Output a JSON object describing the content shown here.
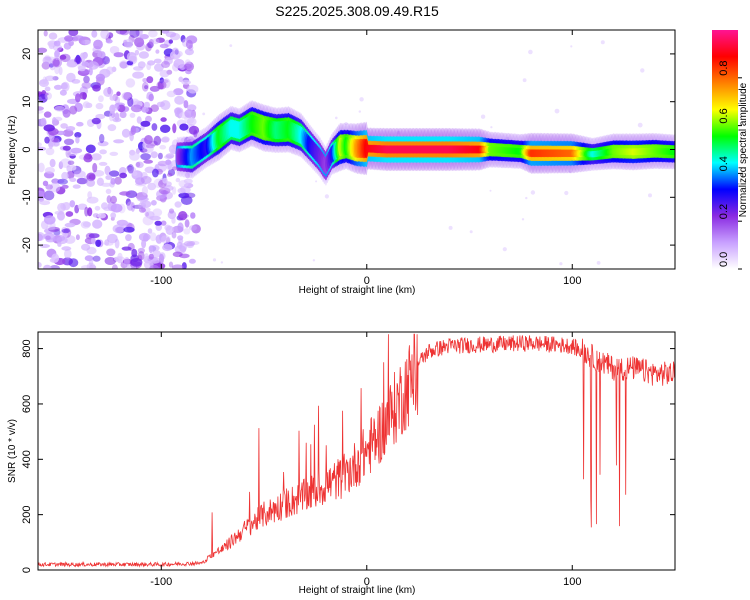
{
  "title": "S225.2025.308.09.49.R15",
  "chart_data": [
    {
      "type": "heatmap",
      "xlabel": "Height of straight line (km)",
      "ylabel": "Frequency (Hz)",
      "xlim": [
        -160,
        150
      ],
      "ylim": [
        -25,
        25
      ],
      "xticks": [
        -100,
        0,
        100
      ],
      "yticks": [
        -20,
        -10,
        0,
        10,
        20
      ],
      "noise_region_x": [
        -160,
        -83
      ],
      "ridge": {
        "x": [
          -92,
          -85,
          -78,
          -72,
          -66,
          -62,
          -56,
          -50,
          -44,
          -38,
          -32,
          -27,
          -23,
          -20,
          -17,
          -13,
          -10,
          -5,
          0,
          10,
          20,
          40,
          55,
          60,
          75,
          80,
          100,
          110,
          120,
          130,
          140,
          150
        ],
        "freq": [
          -1.5,
          -1.6,
          0.5,
          2.5,
          4.5,
          4.0,
          5.5,
          4.5,
          4.0,
          4.2,
          3.0,
          0.5,
          -1.5,
          -3.5,
          -1.0,
          0.5,
          0.7,
          0.2,
          0.2,
          0.0,
          0.0,
          0.0,
          0.0,
          0.0,
          -0.4,
          -0.8,
          -0.8,
          -1.0,
          -0.4,
          -0.5,
          -0.3,
          -0.5
        ],
        "amplitude": [
          0.2,
          0.4,
          0.3,
          0.55,
          0.45,
          0.45,
          0.55,
          0.6,
          0.5,
          0.55,
          0.45,
          0.3,
          0.25,
          0.2,
          0.3,
          0.65,
          0.55,
          0.75,
          0.9,
          0.95,
          0.95,
          0.95,
          0.9,
          0.6,
          0.55,
          0.85,
          0.8,
          0.45,
          0.6,
          0.65,
          0.6,
          0.55
        ]
      },
      "colorbar": {
        "label": "Normalized spectral amplitude",
        "range": [
          0,
          1
        ],
        "ticks": [
          "0.0",
          "0.2",
          "0.4",
          "0.6",
          "0.8"
        ],
        "colors": [
          "#ffffff",
          "#c8a0ff",
          "#8a2be2",
          "#0000ff",
          "#00ffff",
          "#00ff00",
          "#ffff00",
          "#ff8000",
          "#ff0000",
          "#ff1493"
        ]
      }
    },
    {
      "type": "line",
      "xlabel": "Height of straight line (km)",
      "ylabel": "SNR (10 * v/v)",
      "xlim": [
        -160,
        150
      ],
      "ylim": [
        0,
        860
      ],
      "xticks": [
        -100,
        0,
        100
      ],
      "yticks": [
        0,
        200,
        400,
        600,
        800
      ],
      "color": "#ee3333",
      "trend": {
        "x": [
          -160,
          -100,
          -80,
          -75,
          -70,
          -60,
          -50,
          -40,
          -30,
          -20,
          -10,
          0,
          10,
          20,
          30,
          40,
          60,
          80,
          100,
          110,
          120,
          130,
          140,
          150
        ],
        "y": [
          20,
          20,
          25,
          60,
          80,
          150,
          210,
          250,
          280,
          320,
          360,
          450,
          560,
          700,
          790,
          810,
          815,
          820,
          810,
          760,
          720,
          720,
          700,
          700
        ]
      }
    }
  ]
}
